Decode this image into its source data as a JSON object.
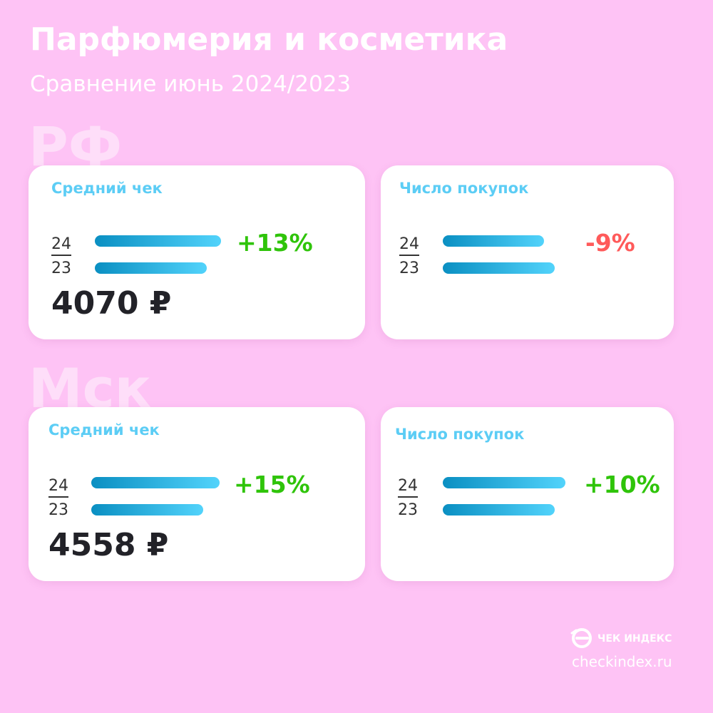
{
  "header": {
    "title": "Парфюмерия и косметика",
    "subtitle": "Сравнение июнь 2024/2023"
  },
  "colors": {
    "background": "#fec3f5",
    "label": "#5ccdf5",
    "positive": "#2fc40a",
    "negative": "#ff5a5a",
    "bar_start": "#0a8fc2",
    "bar_end": "#52d3fb"
  },
  "year_labels": {
    "current": "24",
    "previous": "23"
  },
  "chart_data": [
    {
      "type": "bar",
      "region": "РФ",
      "title": "Средний чек",
      "categories": [
        "24",
        "23"
      ],
      "values": [
        1.13,
        1.0
      ],
      "change": "+13%",
      "value_text": "4070 ₽"
    },
    {
      "type": "bar",
      "region": "РФ",
      "title": "Число покупок",
      "categories": [
        "24",
        "23"
      ],
      "values": [
        0.91,
        1.0
      ],
      "change": "-9%",
      "value_text": ""
    },
    {
      "type": "bar",
      "region": "Мск",
      "title": "Средний чек",
      "categories": [
        "24",
        "23"
      ],
      "values": [
        1.15,
        1.0
      ],
      "change": "+15%",
      "value_text": "4558 ₽"
    },
    {
      "type": "bar",
      "region": "Мск",
      "title": "Число покупок",
      "categories": [
        "24",
        "23"
      ],
      "values": [
        1.1,
        1.0
      ],
      "change": "+10%",
      "value_text": ""
    }
  ],
  "footer": {
    "brand": "ЧЕК ИНДЕКС",
    "url": "checkindex.ru",
    "logo_icon": "checkindex-logo-icon"
  }
}
